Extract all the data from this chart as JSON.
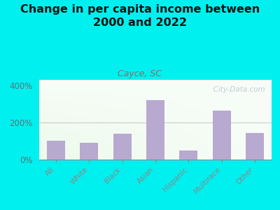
{
  "title": "Change in per capita income between\n2000 and 2022",
  "subtitle": "Cayce, SC",
  "categories": [
    "All",
    "White",
    "Black",
    "Asian",
    "Hispanic",
    "Multirace",
    "Other"
  ],
  "values": [
    100,
    92,
    140,
    320,
    50,
    265,
    145
  ],
  "bar_color": "#b8a9d0",
  "background_color": "#00f0f0",
  "title_fontsize": 11.5,
  "subtitle_fontsize": 9,
  "subtitle_color": "#996666",
  "tick_label_color": "#555555",
  "ytick_label_color": "#557777",
  "ylim": [
    0,
    430
  ],
  "yticks": [
    0,
    200,
    400
  ],
  "ytick_labels": [
    "0%",
    "200%",
    "400%"
  ],
  "watermark": "  City-Data.com",
  "hline_color": "#cccccc"
}
